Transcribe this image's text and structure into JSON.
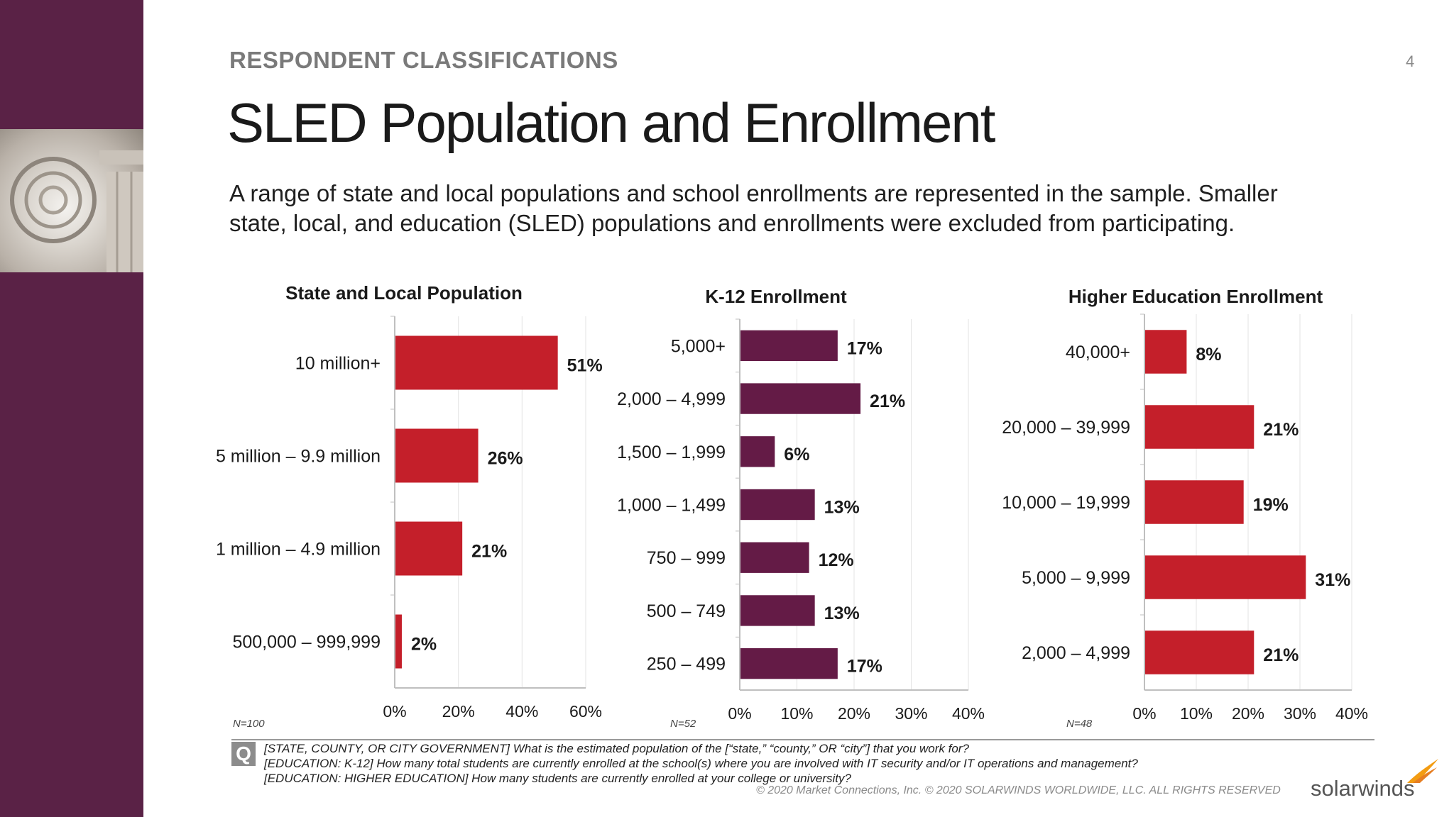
{
  "header": {
    "eyebrow": "RESPONDENT CLASSIFICATIONS",
    "page_number": "4",
    "title": "SLED Population and Enrollment",
    "subtitle_line1": "A range of state and local populations and school enrollments are represented in the sample. Smaller",
    "subtitle_line2": "state, local, and education (SLED) populations and enrollments were excluded from participating."
  },
  "colors": {
    "sidebar": "#5a2246",
    "red_bar": "#c41f2a",
    "purple_bar": "#641b46"
  },
  "chart_data": [
    {
      "type": "bar",
      "orientation": "horizontal",
      "title": "State and Local Population",
      "categories": [
        "10 million+",
        "5 million – 9.9 million",
        "1 million – 4.9 million",
        "500,000 – 999,999"
      ],
      "values": [
        51,
        26,
        21,
        2
      ],
      "value_labels": [
        "51%",
        "26%",
        "21%",
        "2%"
      ],
      "xlim": [
        0,
        60
      ],
      "xticks": [
        "0%",
        "20%",
        "40%",
        "60%"
      ],
      "grid": true,
      "color": "#c41f2a",
      "n_label": "N=100"
    },
    {
      "type": "bar",
      "orientation": "horizontal",
      "title": "K-12 Enrollment",
      "categories": [
        "5,000+",
        "2,000 – 4,999",
        "1,500 – 1,999",
        "1,000 – 1,499",
        "750 – 999",
        "500 – 749",
        "250 – 499"
      ],
      "values": [
        17,
        21,
        6,
        13,
        12,
        13,
        17
      ],
      "value_labels": [
        "17%",
        "21%",
        "6%",
        "13%",
        "12%",
        "13%",
        "17%"
      ],
      "xlim": [
        0,
        40
      ],
      "xticks": [
        "0%",
        "10%",
        "20%",
        "30%",
        "40%"
      ],
      "grid": true,
      "color": "#641b46",
      "n_label": "N=52"
    },
    {
      "type": "bar",
      "orientation": "horizontal",
      "title": "Higher Education Enrollment",
      "categories": [
        "40,000+",
        "20,000 – 39,999",
        "10,000 – 19,999",
        "5,000 – 9,999",
        "2,000 – 4,999"
      ],
      "values": [
        8,
        21,
        19,
        31,
        21
      ],
      "value_labels": [
        "8%",
        "21%",
        "19%",
        "31%",
        "21%"
      ],
      "xlim": [
        0,
        40
      ],
      "xticks": [
        "0%",
        "10%",
        "20%",
        "30%",
        "40%"
      ],
      "grid": true,
      "color": "#c41f2a",
      "n_label": "N=48"
    }
  ],
  "footer": {
    "q_icon": "Q",
    "questions": [
      "[STATE, COUNTY, OR CITY GOVERNMENT] What is the estimated population of the [“state,” “county,” OR “city”] that you work for?",
      "[EDUCATION: K-12] How many total students are currently enrolled at the school(s) where you are involved with IT security and/or IT operations and management?",
      "[EDUCATION: HIGHER EDUCATION] How many students are currently enrolled at your college or university?"
    ],
    "copyright": "© 2020 Market Connections, Inc. © 2020 SOLARWINDS WORLDWIDE, LLC. ALL RIGHTS RESERVED",
    "logo": "solarwinds"
  }
}
